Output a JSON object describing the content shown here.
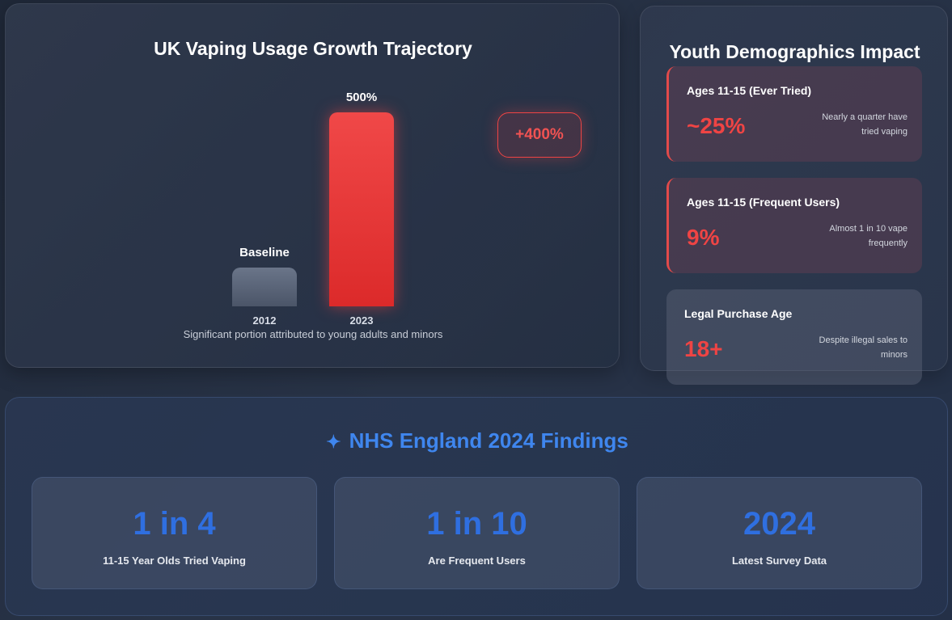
{
  "growth_chart": {
    "title": "UK Vaping Usage Growth Trajectory",
    "caption": "Significant portion attributed to young adults and minors",
    "growth_badge": "+400%",
    "bars": [
      {
        "year": "2012",
        "label": "Baseline",
        "value_pct": 100,
        "color": "#5b6578"
      },
      {
        "year": "2023",
        "label": "500%",
        "value_pct": 500,
        "color": "#e53535"
      }
    ]
  },
  "chart_data": {
    "type": "bar",
    "categories": [
      "2012",
      "2023"
    ],
    "values": [
      100,
      500
    ],
    "title": "UK Vaping Usage Growth Trajectory",
    "data_labels": [
      "Baseline",
      "500%"
    ]
  },
  "demographics": {
    "title": "Youth Demographics Impact",
    "cards": [
      {
        "label": "Ages 11-15 (Ever Tried)",
        "value": "~25%",
        "desc": "Nearly a quarter have tried vaping"
      },
      {
        "label": "Ages 11-15 (Frequent Users)",
        "value": "9%",
        "desc": "Almost 1 in 10 vape frequently"
      },
      {
        "label": "Legal Purchase Age",
        "value": "18+",
        "desc": "Despite illegal sales to minors"
      }
    ]
  },
  "nhs": {
    "icon": "✦",
    "title": "NHS England 2024 Findings",
    "cards": [
      {
        "big": "1 in 4",
        "small": "11-15 Year Olds Tried Vaping"
      },
      {
        "big": "1 in 10",
        "small": "Are Frequent Users"
      },
      {
        "big": "2024",
        "small": "Latest Survey Data"
      }
    ]
  },
  "colors": {
    "accent_red": "#ef4444",
    "accent_blue": "#3f86ee",
    "stat_blue": "#2f6fe0"
  }
}
